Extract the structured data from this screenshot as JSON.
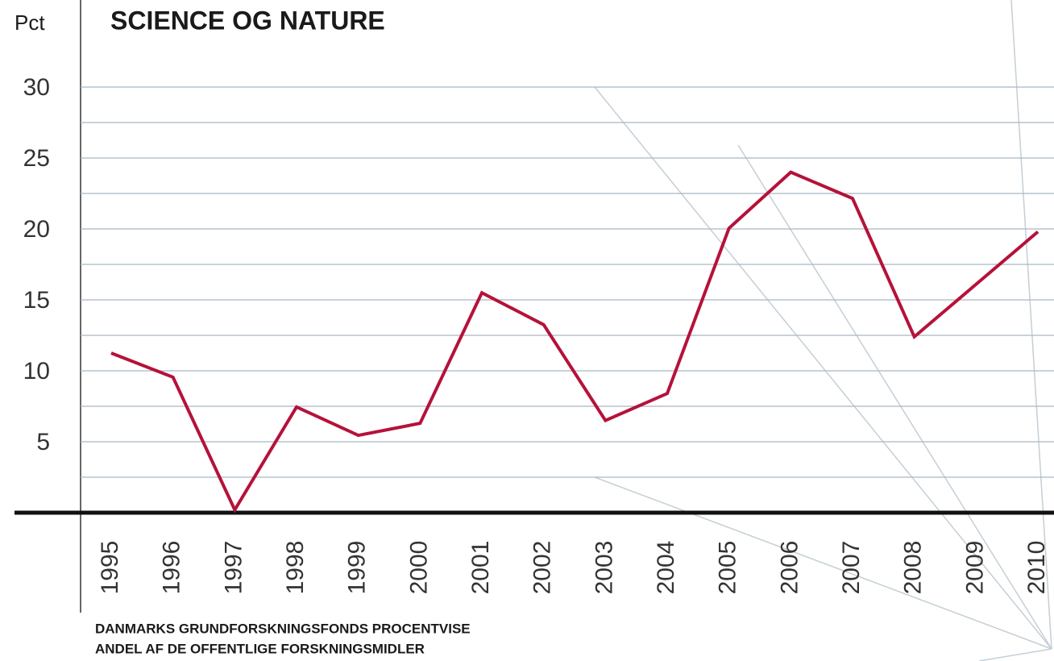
{
  "chart_data": {
    "type": "line",
    "title": "SCIENCE OG NATURE",
    "y_label": "Pct",
    "note": [
      "DANMARKS GRUNDFORSKNINGSFONDS PROCENTVISE",
      "ANDEL AF DE OFFENTLIGE FORSKNINGSMIDLER"
    ],
    "categories": [
      "1995",
      "1996",
      "1997",
      "1998",
      "1999",
      "2000",
      "2001",
      "2002",
      "2003",
      "2004",
      "2005",
      "2006",
      "2007",
      "2008",
      "2009",
      "2010"
    ],
    "values": [
      11.25,
      9.55,
      0.2,
      7.45,
      5.45,
      6.3,
      15.5,
      13.25,
      6.5,
      8.4,
      20.05,
      24,
      22.15,
      12.4,
      16.1,
      19.8
    ],
    "color": "#b5123a",
    "ylim": [
      0,
      30
    ],
    "yticks": [
      5,
      10,
      15,
      20,
      25,
      30
    ],
    "minor_grid": [
      2.5,
      7.5,
      12.5,
      17.5,
      22.5,
      27.5
    ],
    "grid": true
  }
}
